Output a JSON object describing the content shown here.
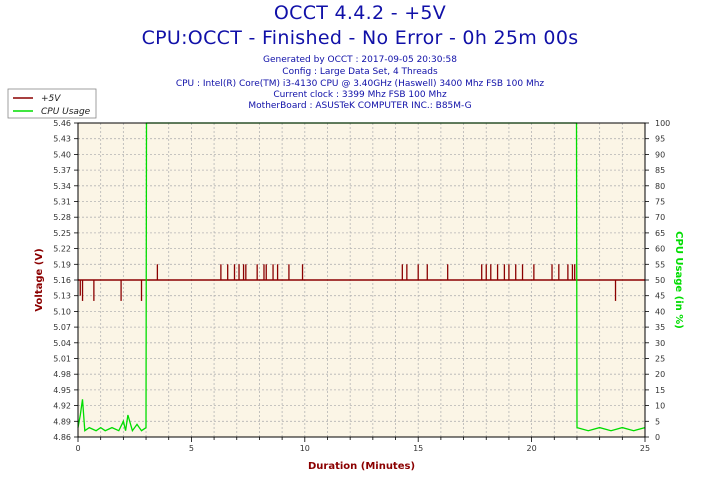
{
  "header": {
    "title": "OCCT 4.4.2 - +5V",
    "subtitle": "CPU:OCCT - Finished - No Error - 0h 25m 00s",
    "info_lines": [
      "Generated by OCCT : 2017-09-05 20:30:58",
      "Config : Large Data Set, 4 Threads",
      "CPU : Intel(R) Core(TM) i3-4130 CPU @ 3.40GHz (Haswell) 3400 Mhz FSB 100 Mhz",
      "Current clock : 3399 Mhz FSB 100 Mhz",
      "MotherBoard : ASUSTeK COMPUTER INC.: B85M-G"
    ]
  },
  "colors": {
    "title": "#1010a8",
    "voltage": "#8b0000",
    "cpu": "#00dd00",
    "plot_bg": "#fbf5e6",
    "grid": "#b4b4b4",
    "frame": "#000000"
  },
  "chart_data": {
    "type": "line",
    "xlabel": "Duration (Minutes)",
    "ylabel": "Voltage (V)",
    "y2label": "CPU Usage (in %)",
    "xlim": [
      0,
      25
    ],
    "ylim": [
      4.86,
      5.46
    ],
    "y2lim": [
      0,
      100
    ],
    "x_ticks": [
      "0",
      "5",
      "10",
      "15",
      "20",
      "25"
    ],
    "y_ticks": [
      "4.86",
      "4.89",
      "4.92",
      "4.95",
      "4.98",
      "5.01",
      "5.04",
      "5.07",
      "5.10",
      "5.13",
      "5.16",
      "5.19",
      "5.22",
      "5.25",
      "5.28",
      "5.31",
      "5.34",
      "5.37",
      "5.40",
      "5.43",
      "5.46"
    ],
    "y2_ticks": [
      "0",
      "5",
      "10",
      "15",
      "20",
      "25",
      "30",
      "35",
      "40",
      "45",
      "50",
      "55",
      "60",
      "65",
      "70",
      "75",
      "80",
      "85",
      "90",
      "95",
      "100"
    ],
    "grid": true,
    "legend_position": "top-left",
    "series": [
      {
        "name": "+5V",
        "axis": "left",
        "baseline": 5.16,
        "spikes": [
          [
            0.1,
            5.13
          ],
          [
            0.2,
            5.12
          ],
          [
            0.7,
            5.12
          ],
          [
            1.9,
            5.12
          ],
          [
            2.8,
            5.12
          ],
          [
            3.5,
            5.19
          ],
          [
            6.3,
            5.19
          ],
          [
            6.6,
            5.19
          ],
          [
            6.9,
            5.19
          ],
          [
            7.1,
            5.19
          ],
          [
            7.3,
            5.19
          ],
          [
            7.4,
            5.19
          ],
          [
            7.9,
            5.19
          ],
          [
            8.2,
            5.19
          ],
          [
            8.3,
            5.19
          ],
          [
            8.6,
            5.19
          ],
          [
            8.8,
            5.19
          ],
          [
            9.3,
            5.19
          ],
          [
            9.9,
            5.19
          ],
          [
            14.3,
            5.19
          ],
          [
            14.5,
            5.19
          ],
          [
            15.0,
            5.19
          ],
          [
            15.4,
            5.19
          ],
          [
            16.3,
            5.19
          ],
          [
            17.8,
            5.19
          ],
          [
            18.0,
            5.19
          ],
          [
            18.2,
            5.19
          ],
          [
            18.5,
            5.19
          ],
          [
            18.8,
            5.19
          ],
          [
            19.0,
            5.19
          ],
          [
            19.3,
            5.19
          ],
          [
            19.6,
            5.19
          ],
          [
            20.1,
            5.19
          ],
          [
            20.9,
            5.19
          ],
          [
            21.2,
            5.19
          ],
          [
            21.6,
            5.19
          ],
          [
            21.8,
            5.19
          ],
          [
            21.9,
            5.19
          ],
          [
            23.7,
            5.12
          ]
        ]
      },
      {
        "name": "CPU Usage",
        "axis": "right",
        "points": [
          [
            0,
            3
          ],
          [
            0.1,
            7
          ],
          [
            0.2,
            12
          ],
          [
            0.3,
            2
          ],
          [
            0.5,
            3
          ],
          [
            0.8,
            2
          ],
          [
            1.0,
            3
          ],
          [
            1.2,
            2
          ],
          [
            1.5,
            3
          ],
          [
            1.8,
            2
          ],
          [
            2.0,
            5
          ],
          [
            2.1,
            2
          ],
          [
            2.2,
            7
          ],
          [
            2.4,
            2
          ],
          [
            2.6,
            4
          ],
          [
            2.8,
            2
          ],
          [
            3.0,
            3
          ],
          [
            3.02,
            100
          ],
          [
            21.98,
            100
          ],
          [
            22.0,
            3
          ],
          [
            22.5,
            2
          ],
          [
            23.0,
            3
          ],
          [
            23.5,
            2
          ],
          [
            24.0,
            3
          ],
          [
            24.5,
            2
          ],
          [
            25,
            3
          ]
        ]
      }
    ]
  }
}
